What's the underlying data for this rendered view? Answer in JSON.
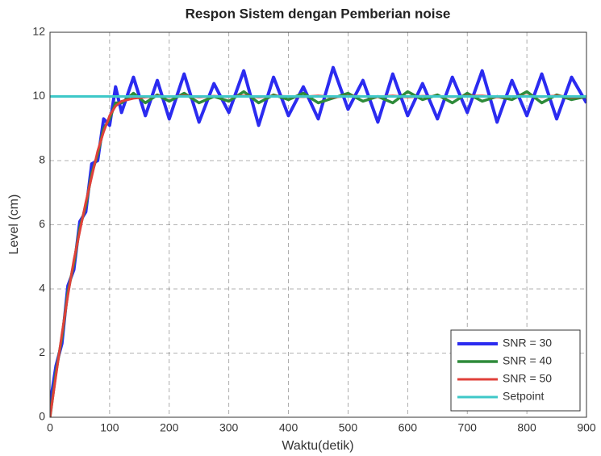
{
  "chart_data": {
    "type": "line",
    "title": "Respon Sistem dengan Pemberian noise",
    "x_label": "Waktu(detik)",
    "y_label": "Level (cm)",
    "x": [
      0,
      10,
      20,
      30,
      40,
      50,
      60,
      70,
      80,
      90,
      100,
      110,
      120,
      140,
      160,
      180,
      200,
      225,
      250,
      275,
      300,
      325,
      350,
      375,
      400,
      425,
      450,
      475,
      500,
      525,
      550,
      575,
      600,
      625,
      650,
      675,
      700,
      725,
      750,
      775,
      800,
      825,
      850,
      875,
      900
    ],
    "series": [
      {
        "name": "SNR = 30",
        "color": "#2b2bf0",
        "width": 4,
        "values": [
          0.4,
          1.6,
          2.3,
          4.1,
          4.6,
          6.1,
          6.4,
          7.9,
          8.0,
          9.3,
          9.1,
          10.3,
          9.5,
          10.6,
          9.4,
          10.5,
          9.3,
          10.7,
          9.2,
          10.4,
          9.5,
          10.8,
          9.1,
          10.6,
          9.4,
          10.3,
          9.3,
          10.9,
          9.6,
          10.5,
          9.2,
          10.7,
          9.4,
          10.4,
          9.3,
          10.6,
          9.5,
          10.8,
          9.2,
          10.5,
          9.4,
          10.7,
          9.3,
          10.6,
          9.8
        ]
      },
      {
        "name": "SNR = 40",
        "color": "#2e8b3a",
        "width": 3.5,
        "values": [
          0,
          1.4,
          2.5,
          3.9,
          4.8,
          5.9,
          6.6,
          7.6,
          8.2,
          9.0,
          9.3,
          9.8,
          9.8,
          10.1,
          9.8,
          10.05,
          9.85,
          10.1,
          9.8,
          10.0,
          9.85,
          10.15,
          9.8,
          10.05,
          9.9,
          10.1,
          9.8,
          9.95,
          10.1,
          9.85,
          10.0,
          9.8,
          10.15,
          9.9,
          10.05,
          9.8,
          10.1,
          9.85,
          10.0,
          9.9,
          10.15,
          9.8,
          10.05,
          9.9,
          10.0
        ]
      },
      {
        "name": "SNR = 50",
        "color": "#e0403a",
        "width": 3,
        "values": [
          0,
          1.3,
          2.6,
          3.8,
          4.9,
          5.8,
          6.7,
          7.5,
          8.3,
          8.9,
          9.4,
          9.7,
          9.85,
          9.94,
          9.98,
          10.01,
          9.99,
          10.02,
          9.98,
          10.01,
          9.99,
          10.02,
          9.98,
          10.01,
          10,
          9.99,
          10.02,
          9.98,
          10.01,
          10,
          9.99,
          10.02,
          9.98,
          10.01,
          10,
          9.99,
          10.01,
          10.02,
          9.98,
          10,
          10.01,
          9.99,
          10.02,
          9.98,
          10
        ]
      },
      {
        "name": "Setpoint",
        "color": "#3ec8c8",
        "width": 3,
        "values": [
          10,
          10,
          10,
          10,
          10,
          10,
          10,
          10,
          10,
          10,
          10,
          10,
          10,
          10,
          10,
          10,
          10,
          10,
          10,
          10,
          10,
          10,
          10,
          10,
          10,
          10,
          10,
          10,
          10,
          10,
          10,
          10,
          10,
          10,
          10,
          10,
          10,
          10,
          10,
          10,
          10,
          10,
          10,
          10,
          10
        ]
      }
    ],
    "xlim": [
      0,
      900
    ],
    "xticks": [
      0,
      100,
      200,
      300,
      400,
      500,
      600,
      700,
      800,
      900
    ],
    "ylim": [
      0,
      12
    ],
    "yticks": [
      0,
      2,
      4,
      6,
      8,
      10,
      12
    ],
    "grid": true,
    "legend": "lower right"
  }
}
